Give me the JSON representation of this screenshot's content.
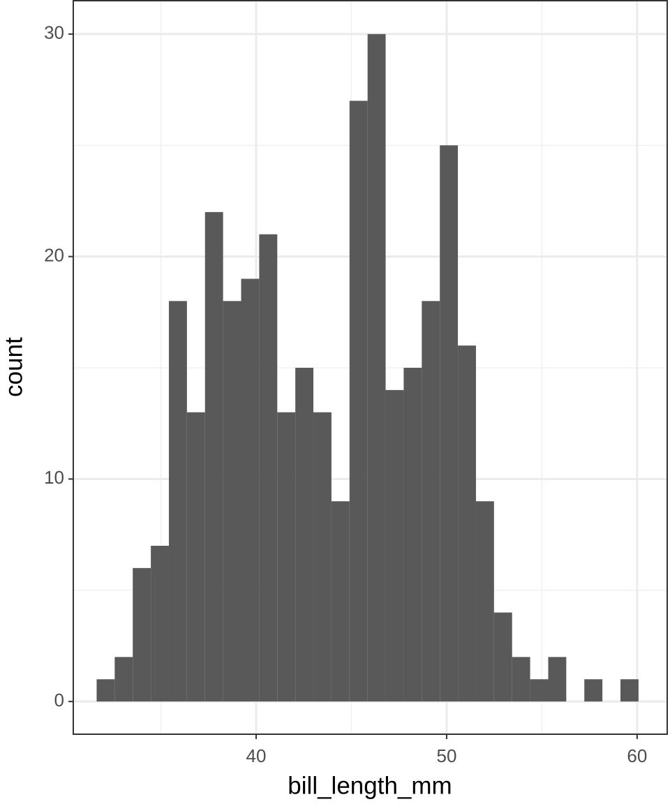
{
  "chart_data": {
    "type": "histogram",
    "x_label": "bill_length_mm",
    "y_label": "count",
    "bins": [
      31.626,
      32.574,
      33.522,
      34.471,
      35.419,
      36.367,
      37.315,
      38.264,
      39.212,
      40.16,
      41.109,
      42.057,
      43.005,
      43.953,
      44.902,
      45.85,
      46.798,
      47.746,
      48.695,
      49.643,
      50.591,
      51.54,
      52.488,
      53.436,
      54.384,
      55.333,
      56.281,
      57.229,
      58.177,
      59.126,
      60.074
    ],
    "values": [
      1,
      2,
      6,
      7,
      18,
      13,
      22,
      18,
      19,
      21,
      13,
      15,
      13,
      9,
      27,
      30,
      14,
      15,
      18,
      25,
      16,
      9,
      4,
      2,
      1,
      2,
      0,
      1,
      0,
      1
    ],
    "color": "#595959",
    "xlim": [
      30.4,
      61.58
    ],
    "ylim": [
      -1.47,
      31.5
    ],
    "xticks": [
      40,
      50,
      60
    ],
    "yticks": [
      0,
      10,
      20,
      30
    ],
    "grid": true
  }
}
